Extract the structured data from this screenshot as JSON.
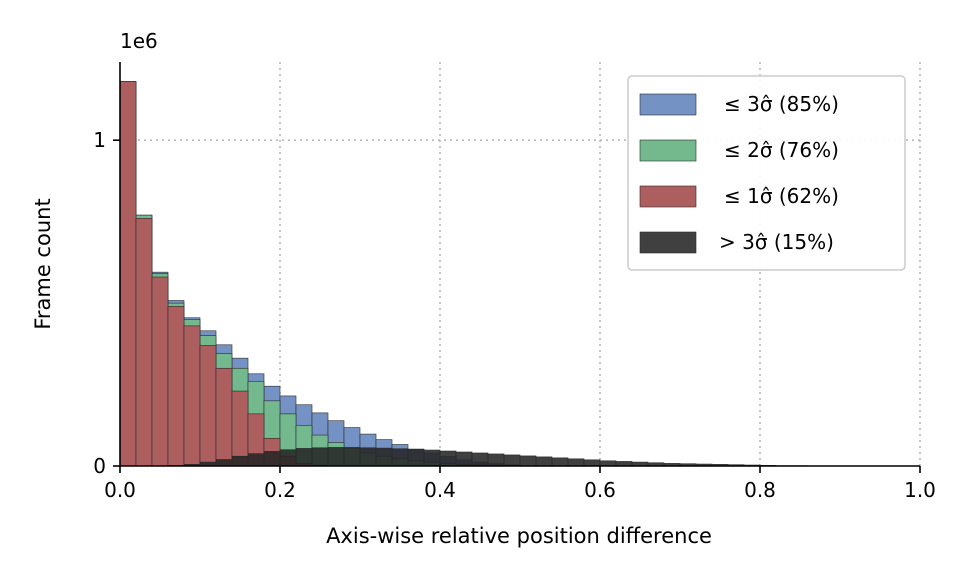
{
  "chart_data": {
    "type": "bar",
    "xlabel": "Axis-wise relative position difference",
    "ylabel": "Frame count",
    "y_scale_label": "1e6",
    "xlim": [
      0.0,
      1.0
    ],
    "ylim": [
      0,
      1.24
    ],
    "x_ticks": [
      "0.0",
      "0.2",
      "0.4",
      "0.6",
      "0.8",
      "1.0"
    ],
    "y_ticks": [
      "0",
      "1"
    ],
    "grid": true,
    "legend_position": "top-right",
    "bin_width": 0.02,
    "series": [
      {
        "name": "≤ 3σ̂ (85%)",
        "color": "#7493c4",
        "x_start": 0.0,
        "values": [
          1.18,
          0.77,
          0.595,
          0.508,
          0.455,
          0.415,
          0.372,
          0.331,
          0.283,
          0.245,
          0.215,
          0.188,
          0.163,
          0.139,
          0.118,
          0.098,
          0.081,
          0.066,
          0.052,
          0.04,
          0.029,
          0.019,
          0.012,
          0.007,
          0.003
        ]
      },
      {
        "name": "≤ 2σ̂ (76%)",
        "color": "#74b88e",
        "x_start": 0.0,
        "values": [
          1.18,
          0.77,
          0.59,
          0.5,
          0.45,
          0.4,
          0.345,
          0.3,
          0.26,
          0.2,
          0.16,
          0.125,
          0.095,
          0.072,
          0.055,
          0.04,
          0.03,
          0.022,
          0.016,
          0.012,
          0.008,
          0.005,
          0.003,
          0.002,
          0.001
        ]
      },
      {
        "name": "≤ 1σ̂ (62%)",
        "color": "#ad5e5e",
        "x_start": 0.0,
        "values": [
          1.18,
          0.76,
          0.58,
          0.49,
          0.43,
          0.37,
          0.3,
          0.23,
          0.16,
          0.085,
          0.03,
          0.008,
          0.002
        ]
      },
      {
        "name": "> 3σ̂ (15%)",
        "color": "#262626",
        "x_start": 0.06,
        "values": [
          0.002,
          0.005,
          0.012,
          0.02,
          0.03,
          0.038,
          0.045,
          0.05,
          0.054,
          0.056,
          0.057,
          0.057,
          0.056,
          0.055,
          0.053,
          0.051,
          0.049,
          0.046,
          0.043,
          0.04,
          0.037,
          0.034,
          0.031,
          0.028,
          0.025,
          0.022,
          0.019,
          0.016,
          0.014,
          0.012,
          0.01,
          0.008,
          0.007,
          0.006,
          0.005,
          0.004,
          0.003,
          0.002,
          0.001,
          0.001
        ]
      }
    ]
  }
}
